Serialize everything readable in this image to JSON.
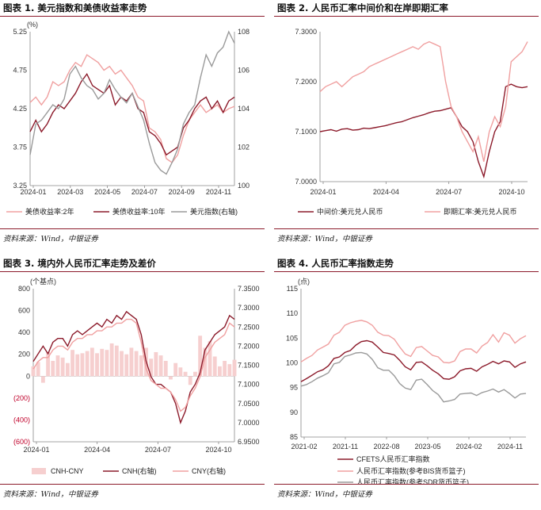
{
  "source_label": "资料来源：Wind，中银证券",
  "colors": {
    "accent": "#8c1b2b",
    "light": "#f0a0a0",
    "gray": "#9a9a9a",
    "bar": "#f6cfcf"
  },
  "chart_data": [
    {
      "type": "line",
      "title": "图表 1. 美元指数和美债收益率走势",
      "unit_label": "(%)",
      "x_ticks": [
        "2024-01",
        "2024-03",
        "2024-05",
        "2024-07",
        "2024-09",
        "2024-11"
      ],
      "y_left": {
        "ticks": [
          "5.25",
          "4.75",
          "4.25",
          "3.75",
          "3.25"
        ],
        "range": [
          3.25,
          5.25
        ]
      },
      "y_right": {
        "ticks": [
          "108",
          "106",
          "104",
          "102",
          "100"
        ],
        "range": [
          100,
          108
        ]
      },
      "series": [
        {
          "name": "美债收益率:2年",
          "axis": "left",
          "color": "#f0a0a0",
          "values": [
            4.33,
            4.4,
            4.3,
            4.4,
            4.6,
            4.55,
            4.6,
            4.75,
            4.85,
            4.8,
            4.95,
            4.9,
            4.85,
            4.75,
            4.8,
            4.7,
            4.75,
            4.65,
            4.55,
            4.4,
            4.35,
            4.0,
            3.95,
            3.85,
            3.6,
            3.55,
            3.65,
            3.9,
            4.1,
            4.2,
            4.3,
            4.2,
            4.25,
            4.3,
            4.2,
            4.25,
            4.28
          ]
        },
        {
          "name": "美债收益率:10年",
          "axis": "left",
          "color": "#8c1b2b",
          "values": [
            3.95,
            4.1,
            3.95,
            4.05,
            4.2,
            4.3,
            4.25,
            4.35,
            4.45,
            4.6,
            4.7,
            4.55,
            4.5,
            4.45,
            4.55,
            4.3,
            4.4,
            4.35,
            4.45,
            4.25,
            4.2,
            3.95,
            3.9,
            3.8,
            3.65,
            3.7,
            3.75,
            4.0,
            4.1,
            4.25,
            4.35,
            4.4,
            4.25,
            4.35,
            4.2,
            4.35,
            4.4
          ]
        },
        {
          "name": "美元指数(右轴)",
          "axis": "right",
          "color": "#9a9a9a",
          "values": [
            101.6,
            103.2,
            103.4,
            103.8,
            104.2,
            104.0,
            104.5,
            105.8,
            106.2,
            105.6,
            105.2,
            105.0,
            104.5,
            104.8,
            105.5,
            105.0,
            104.6,
            104.3,
            104.8,
            104.1,
            103.4,
            102.2,
            101.2,
            100.8,
            100.6,
            101.2,
            101.9,
            103.2,
            103.8,
            104.2,
            105.6,
            106.8,
            106.2,
            106.9,
            107.2,
            108.0,
            107.4
          ]
        }
      ]
    },
    {
      "type": "line",
      "title": "图表 2. 人民币汇率中间价和在岸即期汇率",
      "x_ticks": [
        "2024-01",
        "2024-04",
        "2024-07",
        "2024-10"
      ],
      "y_left": {
        "ticks": [
          "7.3000",
          "7.2000",
          "7.1000",
          "7.0000"
        ],
        "range": [
          7.0,
          7.3
        ]
      },
      "series": [
        {
          "name": "中间价:美元兑人民币",
          "color": "#8c1b2b",
          "values": [
            7.1,
            7.102,
            7.104,
            7.101,
            7.105,
            7.106,
            7.103,
            7.104,
            7.107,
            7.106,
            7.108,
            7.11,
            7.112,
            7.115,
            7.118,
            7.12,
            7.124,
            7.128,
            7.131,
            7.134,
            7.138,
            7.141,
            7.142,
            7.145,
            7.148,
            7.13,
            7.11,
            7.1,
            7.08,
            7.04,
            7.01,
            7.06,
            7.1,
            7.12,
            7.19,
            7.195,
            7.19,
            7.188,
            7.19
          ]
        },
        {
          "name": "即期汇率:美元兑人民币",
          "color": "#f0a0a0",
          "values": [
            7.18,
            7.19,
            7.195,
            7.2,
            7.19,
            7.2,
            7.21,
            7.215,
            7.22,
            7.23,
            7.235,
            7.24,
            7.245,
            7.25,
            7.255,
            7.26,
            7.265,
            7.27,
            7.265,
            7.275,
            7.28,
            7.275,
            7.27,
            7.2,
            7.15,
            7.13,
            7.1,
            7.08,
            7.06,
            7.09,
            7.04,
            7.1,
            7.13,
            7.11,
            7.15,
            7.24,
            7.25,
            7.26,
            7.28
          ]
        }
      ]
    },
    {
      "type": "line",
      "title": "图表 3. 境内外人民币汇率走势及差价",
      "unit_label": "(个基点)",
      "x_ticks": [
        "2024-01",
        "2024-04",
        "2024-07",
        "2024-10"
      ],
      "y_left": {
        "ticks": [
          "800",
          "600",
          "400",
          "200",
          "0",
          "(200)",
          "(400)",
          "(600)"
        ],
        "range": [
          -600,
          800
        ]
      },
      "y_right": {
        "ticks": [
          "7.3500",
          "7.3000",
          "7.2500",
          "7.2000",
          "7.1500",
          "7.1000",
          "7.0500",
          "7.0000",
          "6.9500"
        ],
        "range": [
          6.95,
          7.35
        ]
      },
      "series": [
        {
          "name": "CNH-CNY",
          "axis": "left",
          "kind": "bar",
          "color": "#f6cfcf",
          "values": [
            90,
            130,
            -60,
            220,
            140,
            190,
            170,
            120,
            240,
            200,
            210,
            230,
            260,
            210,
            250,
            240,
            300,
            280,
            230,
            200,
            260,
            230,
            190,
            260,
            160,
            220,
            190,
            140,
            -30,
            120,
            80,
            40,
            -80,
            40,
            370,
            260,
            320,
            180,
            90,
            140,
            110,
            150
          ]
        },
        {
          "name": "CNH(右轴)",
          "axis": "right",
          "color": "#8c1b2b",
          "values": [
            7.16,
            7.18,
            7.2,
            7.18,
            7.21,
            7.22,
            7.22,
            7.2,
            7.23,
            7.24,
            7.23,
            7.24,
            7.25,
            7.26,
            7.25,
            7.27,
            7.26,
            7.28,
            7.27,
            7.29,
            7.28,
            7.27,
            7.23,
            7.16,
            7.12,
            7.1,
            7.1,
            7.09,
            7.08,
            7.05,
            7.0,
            7.03,
            7.08,
            7.1,
            7.13,
            7.19,
            7.21,
            7.23,
            7.24,
            7.25,
            7.28,
            7.27
          ]
        },
        {
          "name": "CNY(右轴)",
          "axis": "right",
          "color": "#f0a0a0",
          "values": [
            7.14,
            7.16,
            7.17,
            7.17,
            7.19,
            7.2,
            7.2,
            7.19,
            7.21,
            7.22,
            7.22,
            7.23,
            7.23,
            7.24,
            7.24,
            7.25,
            7.25,
            7.26,
            7.26,
            7.27,
            7.27,
            7.26,
            7.21,
            7.14,
            7.11,
            7.1,
            7.09,
            7.09,
            7.08,
            7.06,
            7.03,
            7.04,
            7.07,
            7.09,
            7.12,
            7.17,
            7.19,
            7.21,
            7.22,
            7.23,
            7.26,
            7.25
          ]
        }
      ]
    },
    {
      "type": "line",
      "title": "图表 4. 人民币汇率指数走势",
      "unit_label": "(点)",
      "x_ticks": [
        "2021-02",
        "2021-11",
        "2022-08",
        "2023-05",
        "2024-02",
        "2024-11"
      ],
      "y_left": {
        "ticks": [
          "115",
          "110",
          "105",
          "100",
          "95",
          "90",
          "85"
        ],
        "range": [
          85,
          115
        ]
      },
      "series": [
        {
          "name": "CFETS人民币汇率指数",
          "color": "#8c1b2b",
          "values": [
            96.2,
            96.8,
            97.5,
            98.2,
            98.6,
            99.4,
            100.9,
            101.2,
            102.1,
            102.5,
            103.6,
            104.3,
            104.5,
            104.2,
            103.2,
            102.1,
            101.9,
            101.6,
            100.5,
            99.2,
            98.6,
            100.1,
            100.2,
            99.4,
            98.5,
            97.8,
            96.8,
            96.7,
            97.2,
            98.4,
            98.8,
            98.9,
            98.3,
            99.2,
            99.7,
            100.3,
            99.8,
            100.4,
            100.2,
            99.1,
            99.8,
            100.2
          ]
        },
        {
          "name": "人民币汇率指数(参考BIS货币篮子)",
          "color": "#f0a0a0",
          "values": [
            100.2,
            100.9,
            101.5,
            102.6,
            103.2,
            103.8,
            105.6,
            106.2,
            107.6,
            108.1,
            108.4,
            108.6,
            108.3,
            107.6,
            106.2,
            105.6,
            105.5,
            104.8,
            103.2,
            101.8,
            101.3,
            103.1,
            103.3,
            102.4,
            101.5,
            101.2,
            100.1,
            100.0,
            100.4,
            102.3,
            102.8,
            102.8,
            102.0,
            103.4,
            104.1,
            105.7,
            104.2,
            106.1,
            105.6,
            104.0,
            104.9,
            105.5
          ]
        },
        {
          "name": "人民币汇率指数(参考SDR货币篮子)",
          "color": "#9a9a9a",
          "values": [
            95.3,
            95.6,
            96.2,
            96.9,
            97.4,
            98.0,
            99.8,
            100.1,
            101.3,
            101.6,
            102.0,
            102.1,
            101.8,
            100.7,
            99.0,
            98.5,
            98.5,
            97.4,
            95.8,
            94.9,
            94.6,
            96.5,
            96.7,
            95.6,
            94.4,
            93.6,
            92.1,
            92.3,
            92.6,
            93.7,
            93.8,
            93.9,
            93.4,
            94.0,
            94.3,
            94.7,
            94.1,
            94.6,
            93.8,
            92.9,
            93.7,
            93.8
          ]
        }
      ]
    }
  ]
}
